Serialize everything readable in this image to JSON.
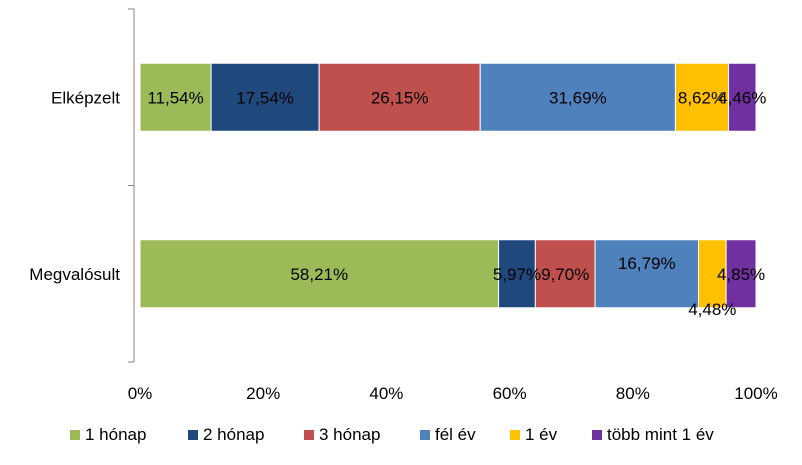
{
  "chart_data": {
    "type": "bar",
    "orientation": "horizontal",
    "stacked": true,
    "percent_scale": true,
    "categories": [
      "Elképzelt",
      "Megvalósult"
    ],
    "series": [
      {
        "name": "1 hónap",
        "color": "#9BBB59",
        "values": [
          11.54,
          58.21
        ],
        "labels": [
          "11,54%",
          "58,21%"
        ]
      },
      {
        "name": "2 hónap",
        "color": "#1F497D",
        "values": [
          17.54,
          5.97
        ],
        "labels": [
          "17,54%",
          "5,97%"
        ]
      },
      {
        "name": "3 hónap",
        "color": "#C0504D",
        "values": [
          26.15,
          9.7
        ],
        "labels": [
          "26,15%",
          "9,70%"
        ]
      },
      {
        "name": "fél év",
        "color": "#4F81BD",
        "values": [
          31.69,
          16.79
        ],
        "labels": [
          "31,69%",
          "16,79%"
        ]
      },
      {
        "name": "1 év",
        "color": "#FFC000",
        "values": [
          8.62,
          4.48
        ],
        "labels": [
          "8,62%",
          "4,48%"
        ]
      },
      {
        "name": "több mint 1 év",
        "color": "#7030A0",
        "values": [
          4.46,
          4.85
        ],
        "labels": [
          "4,46%",
          "4,85%"
        ]
      }
    ],
    "xlim": [
      0,
      100
    ],
    "xticks": [
      0,
      20,
      40,
      60,
      80,
      100
    ],
    "xtick_labels": [
      "0%",
      "20%",
      "40%",
      "60%",
      "80%",
      "100%"
    ],
    "grid": false,
    "legend": "bottom",
    "title": "",
    "xlabel": "",
    "ylabel": ""
  }
}
